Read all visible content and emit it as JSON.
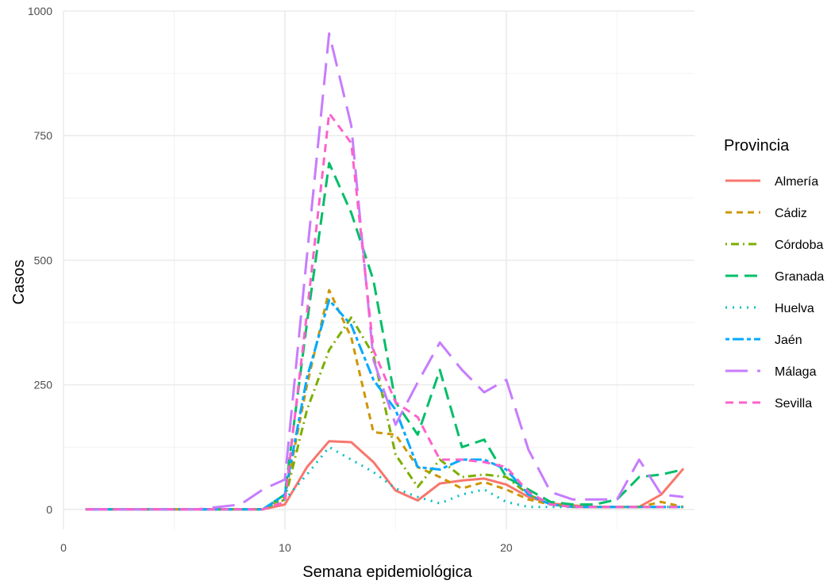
{
  "chart_data": {
    "type": "line",
    "title": "",
    "xlabel": "Semana epidemiológica",
    "ylabel": "Casos",
    "xlim": [
      0,
      28.5
    ],
    "ylim": [
      -40,
      1000
    ],
    "x_ticks": [
      0,
      10,
      20
    ],
    "y_ticks": [
      0,
      250,
      500,
      750,
      1000
    ],
    "x_tick_labels": [
      "0",
      "10",
      "20"
    ],
    "y_tick_labels": [
      "0",
      "250",
      "500",
      "750",
      "1000"
    ],
    "grid": true,
    "legend_position": "right",
    "legend_title": "Provincia",
    "x": [
      1,
      2,
      3,
      4,
      5,
      6,
      7,
      8,
      9,
      10,
      11,
      12,
      13,
      14,
      15,
      16,
      17,
      18,
      19,
      20,
      21,
      22,
      23,
      24,
      25,
      26,
      27,
      28
    ],
    "series": [
      {
        "name": "Almería",
        "color": "#F8766D",
        "dash": "solid",
        "values": [
          0,
          0,
          0,
          0,
          0,
          0,
          0,
          0,
          0,
          10,
          85,
          137,
          135,
          95,
          38,
          18,
          52,
          58,
          62,
          50,
          25,
          12,
          8,
          5,
          5,
          5,
          30,
          82
        ]
      },
      {
        "name": "Cádiz",
        "color": "#CD9600",
        "dash": "dashed",
        "values": [
          0,
          0,
          0,
          0,
          0,
          0,
          0,
          0,
          0,
          25,
          250,
          440,
          345,
          155,
          150,
          85,
          65,
          42,
          55,
          40,
          20,
          10,
          5,
          5,
          5,
          5,
          15,
          5
        ]
      },
      {
        "name": "Córdoba",
        "color": "#7CAE00",
        "dash": "dotdash",
        "values": [
          0,
          0,
          0,
          0,
          0,
          0,
          0,
          0,
          0,
          20,
          200,
          320,
          385,
          310,
          110,
          45,
          100,
          65,
          70,
          65,
          30,
          10,
          5,
          5,
          5,
          5,
          5,
          5
        ]
      },
      {
        "name": "Granada",
        "color": "#00BE67",
        "dash": "longdash",
        "values": [
          0,
          0,
          0,
          0,
          0,
          0,
          0,
          0,
          0,
          30,
          375,
          695,
          595,
          460,
          215,
          150,
          280,
          125,
          140,
          65,
          40,
          15,
          10,
          10,
          20,
          65,
          70,
          80
        ]
      },
      {
        "name": "Huelva",
        "color": "#00BFC4",
        "dash": "dotted",
        "values": [
          0,
          0,
          0,
          0,
          0,
          0,
          0,
          0,
          0,
          20,
          70,
          125,
          100,
          75,
          42,
          25,
          12,
          30,
          40,
          15,
          5,
          5,
          5,
          5,
          5,
          5,
          5,
          5
        ]
      },
      {
        "name": "Jaén",
        "color": "#00A9FF",
        "dash": "twodash",
        "values": [
          0,
          0,
          0,
          0,
          0,
          0,
          0,
          0,
          0,
          30,
          265,
          420,
          370,
          260,
          200,
          85,
          80,
          100,
          100,
          80,
          30,
          10,
          5,
          5,
          5,
          5,
          5,
          5
        ]
      },
      {
        "name": "Málaga",
        "color": "#C77CFF",
        "dash": "longdash2",
        "values": [
          0,
          0,
          0,
          0,
          0,
          0,
          5,
          10,
          40,
          60,
          510,
          955,
          770,
          300,
          170,
          255,
          335,
          280,
          235,
          260,
          120,
          35,
          20,
          20,
          20,
          100,
          30,
          25
        ]
      },
      {
        "name": "Sevilla",
        "color": "#FF61CC",
        "dash": "dashed2",
        "values": [
          0,
          0,
          0,
          0,
          0,
          0,
          0,
          0,
          0,
          15,
          395,
          795,
          735,
          320,
          215,
          185,
          100,
          100,
          95,
          85,
          35,
          10,
          5,
          5,
          5,
          5,
          5,
          5
        ]
      }
    ]
  }
}
